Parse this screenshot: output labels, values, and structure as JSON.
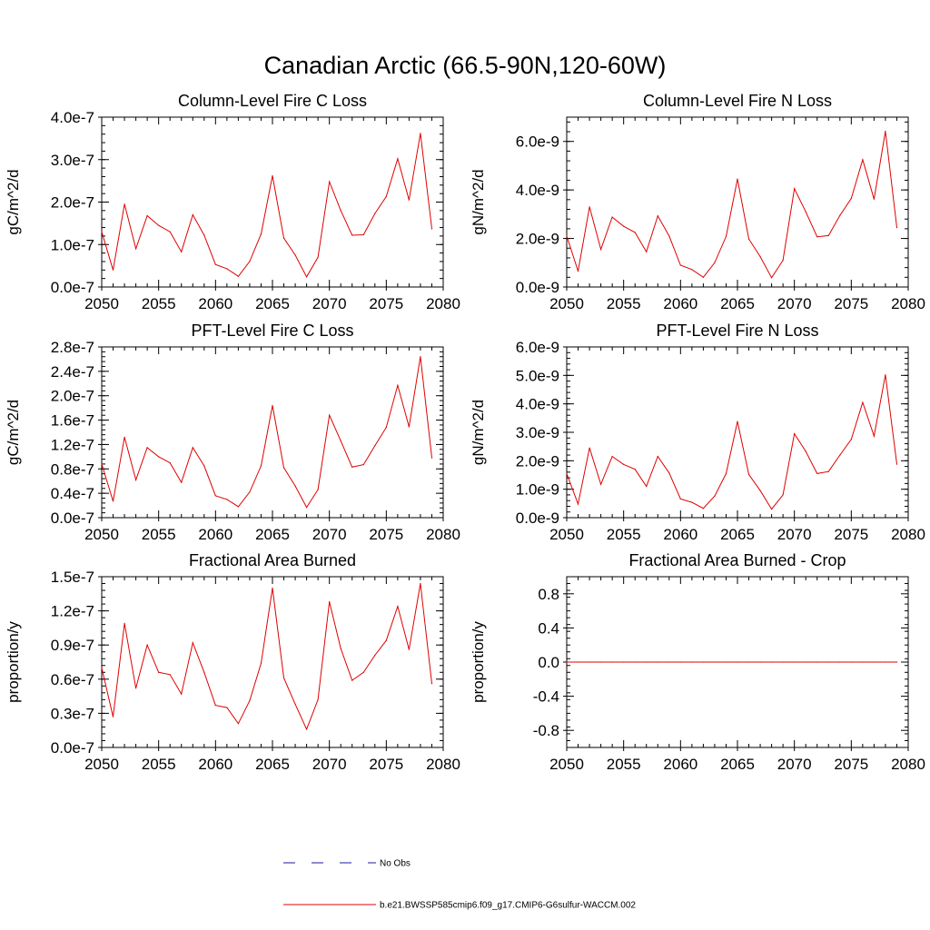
{
  "figure": {
    "title": "Canadian Arctic (66.5-90N,120-60W)"
  },
  "colors": {
    "model_line": "#e00000",
    "obs_line": "#1a1aa0",
    "axis": "#000000"
  },
  "legend": {
    "position": "bottom-center",
    "entries": [
      {
        "label": "No Obs",
        "style": "dashed",
        "color": "#1a1aa0"
      },
      {
        "label": "b.e21.BWSSP585cmip6.f09_g17.CMIP6-G6sulfur-WACCM.002",
        "style": "solid",
        "color": "#e00000"
      }
    ]
  },
  "chart_data": [
    {
      "type": "line",
      "title": "Column-Level Fire C Loss",
      "xlabel": "",
      "ylabel": "gC/m^2/d",
      "xlim": [
        2050,
        2080
      ],
      "ylim": [
        0,
        4e-07
      ],
      "xticks": [
        "2050",
        "2055",
        "2060",
        "2065",
        "2070",
        "2075",
        "2080"
      ],
      "yticks": [
        0,
        1e-07,
        2e-07,
        3e-07,
        4e-07
      ],
      "ytick_labels": [
        "0.0e-7",
        "1.0e-7",
        "2.0e-7",
        "3.0e-7",
        "4.0e-7"
      ],
      "grid": false,
      "series": [
        {
          "name": "b.e21.BWSSP585cmip6.f09_g17.CMIP6-G6sulfur-WACCM.002",
          "x": [
            2050,
            2051,
            2052,
            2053,
            2054,
            2055,
            2056,
            2057,
            2058,
            2059,
            2060,
            2061,
            2062,
            2063,
            2064,
            2065,
            2066,
            2067,
            2068,
            2069,
            2070,
            2071,
            2072,
            2073,
            2074,
            2075,
            2076,
            2077,
            2078,
            2079
          ],
          "values": [
            1.3e-07,
            4e-08,
            1.95e-07,
            9e-08,
            1.68e-07,
            1.45e-07,
            1.3e-07,
            8.3e-08,
            1.7e-07,
            1.22e-07,
            5.3e-08,
            4.3e-08,
            2.5e-08,
            6e-08,
            1.25e-07,
            2.62e-07,
            1.15e-07,
            7.5e-08,
            2.4e-08,
            7e-08,
            2.48e-07,
            1.8e-07,
            1.22e-07,
            1.23e-07,
            1.73e-07,
            2.13e-07,
            3.02e-07,
            2.05e-07,
            3.62e-07,
            1.37e-07
          ]
        }
      ]
    },
    {
      "type": "line",
      "title": "Column-Level Fire N Loss",
      "xlabel": "",
      "ylabel": "gN/m^2/d",
      "xlim": [
        2050,
        2080
      ],
      "ylim": [
        0,
        7e-09
      ],
      "xticks": [
        "2050",
        "2055",
        "2060",
        "2065",
        "2070",
        "2075",
        "2080"
      ],
      "yticks": [
        0,
        2e-09,
        4e-09,
        6e-09
      ],
      "ytick_labels": [
        "0.0e-9",
        "2.0e-9",
        "4.0e-9",
        "6.0e-9"
      ],
      "grid": false,
      "series": [
        {
          "name": "b.e21.BWSSP585cmip6.f09_g17.CMIP6-G6sulfur-WACCM.002",
          "x": [
            2050,
            2051,
            2052,
            2053,
            2054,
            2055,
            2056,
            2057,
            2058,
            2059,
            2060,
            2061,
            2062,
            2063,
            2064,
            2065,
            2066,
            2067,
            2068,
            2069,
            2070,
            2071,
            2072,
            2073,
            2074,
            2075,
            2076,
            2077,
            2078,
            2079
          ],
          "values": [
            2.1e-09,
            6.5e-10,
            3.3e-09,
            1.55e-09,
            2.88e-09,
            2.5e-09,
            2.25e-09,
            1.45e-09,
            2.93e-09,
            2.1e-09,
            9e-10,
            7.2e-10,
            4e-10,
            1e-09,
            2.08e-09,
            4.45e-09,
            1.98e-09,
            1.25e-09,
            3.8e-10,
            1.1e-09,
            4.05e-09,
            3.1e-09,
            2.07e-09,
            2.12e-09,
            2.95e-09,
            3.65e-09,
            5.25e-09,
            3.62e-09,
            6.42e-09,
            2.45e-09
          ]
        }
      ]
    },
    {
      "type": "line",
      "title": "PFT-Level Fire C Loss",
      "xlabel": "",
      "ylabel": "gC/m^2/d",
      "xlim": [
        2050,
        2080
      ],
      "ylim": [
        0,
        2.8e-07
      ],
      "xticks": [
        "2050",
        "2055",
        "2060",
        "2065",
        "2070",
        "2075",
        "2080"
      ],
      "yticks": [
        0,
        4e-08,
        8e-08,
        1.2e-07,
        1.6e-07,
        2e-07,
        2.4e-07,
        2.8e-07
      ],
      "ytick_labels": [
        "0.0e-7",
        "0.4e-7",
        "0.8e-7",
        "1.2e-7",
        "1.6e-7",
        "2.0e-7",
        "2.4e-7",
        "2.8e-7"
      ],
      "grid": false,
      "series": [
        {
          "name": "b.e21.BWSSP585cmip6.f09_g17.CMIP6-G6sulfur-WACCM.002",
          "x": [
            2050,
            2051,
            2052,
            2053,
            2054,
            2055,
            2056,
            2057,
            2058,
            2059,
            2060,
            2061,
            2062,
            2063,
            2064,
            2065,
            2066,
            2067,
            2068,
            2069,
            2070,
            2071,
            2072,
            2073,
            2074,
            2075,
            2076,
            2077,
            2078,
            2079
          ],
          "values": [
            8.8e-08,
            2.7e-08,
            1.32e-07,
            6.2e-08,
            1.15e-07,
            1e-07,
            9e-08,
            5.8e-08,
            1.15e-07,
            8.5e-08,
            3.6e-08,
            3e-08,
            1.8e-08,
            4.2e-08,
            8.5e-08,
            1.84e-07,
            8.2e-08,
            5.2e-08,
            1.7e-08,
            4.6e-08,
            1.68e-07,
            1.26e-07,
            8.3e-08,
            8.7e-08,
            1.18e-07,
            1.48e-07,
            2.17e-07,
            1.49e-07,
            2.64e-07,
            9.8e-08
          ]
        }
      ]
    },
    {
      "type": "line",
      "title": "PFT-Level Fire N Loss",
      "xlabel": "",
      "ylabel": "gN/m^2/d",
      "xlim": [
        2050,
        2080
      ],
      "ylim": [
        0,
        6e-09
      ],
      "xticks": [
        "2050",
        "2055",
        "2060",
        "2065",
        "2070",
        "2075",
        "2080"
      ],
      "yticks": [
        0,
        1e-09,
        2e-09,
        3e-09,
        4e-09,
        5e-09,
        6e-09
      ],
      "ytick_labels": [
        "0.0e-9",
        "1.0e-9",
        "2.0e-9",
        "3.0e-9",
        "4.0e-9",
        "5.0e-9",
        "6.0e-9"
      ],
      "grid": false,
      "series": [
        {
          "name": "b.e21.BWSSP585cmip6.f09_g17.CMIP6-G6sulfur-WACCM.002",
          "x": [
            2050,
            2051,
            2052,
            2053,
            2054,
            2055,
            2056,
            2057,
            2058,
            2059,
            2060,
            2061,
            2062,
            2063,
            2064,
            2065,
            2066,
            2067,
            2068,
            2069,
            2070,
            2071,
            2072,
            2073,
            2074,
            2075,
            2076,
            2077,
            2078,
            2079
          ],
          "values": [
            1.55e-09,
            4.8e-10,
            2.45e-09,
            1.17e-09,
            2.15e-09,
            1.87e-09,
            1.7e-09,
            1.1e-09,
            2.15e-09,
            1.57e-09,
            6.6e-10,
            5.4e-10,
            3.3e-10,
            7.6e-10,
            1.55e-09,
            3.38e-09,
            1.52e-09,
            9.5e-10,
            3e-10,
            8e-10,
            2.95e-09,
            2.33e-09,
            1.55e-09,
            1.62e-09,
            2.2e-09,
            2.75e-09,
            4.05e-09,
            2.87e-09,
            5.02e-09,
            1.88e-09
          ]
        }
      ]
    },
    {
      "type": "line",
      "title": "Fractional Area Burned",
      "xlabel": "",
      "ylabel": "proportion/y",
      "xlim": [
        2050,
        2080
      ],
      "ylim": [
        0,
        1.5e-07
      ],
      "xticks": [
        "2050",
        "2055",
        "2060",
        "2065",
        "2070",
        "2075",
        "2080"
      ],
      "yticks": [
        0,
        3e-08,
        6e-08,
        9e-08,
        1.2e-07,
        1.5e-07
      ],
      "ytick_labels": [
        "0.0e-7",
        "0.3e-7",
        "0.6e-7",
        "0.9e-7",
        "1.2e-7",
        "1.5e-7"
      ],
      "grid": false,
      "series": [
        {
          "name": "b.e21.BWSSP585cmip6.f09_g17.CMIP6-G6sulfur-WACCM.002",
          "x": [
            2050,
            2051,
            2052,
            2053,
            2054,
            2055,
            2056,
            2057,
            2058,
            2059,
            2060,
            2061,
            2062,
            2063,
            2064,
            2065,
            2066,
            2067,
            2068,
            2069,
            2070,
            2071,
            2072,
            2073,
            2074,
            2075,
            2076,
            2077,
            2078,
            2079
          ],
          "values": [
            7e-08,
            2.7e-08,
            1.09e-07,
            5.2e-08,
            9e-08,
            6.6e-08,
            6.4e-08,
            4.7e-08,
            9.2e-08,
            6.6e-08,
            3.7e-08,
            3.5e-08,
            2.1e-08,
            4.1e-08,
            7.4e-08,
            1.4e-07,
            6.1e-08,
            3.8e-08,
            1.6e-08,
            4.2e-08,
            1.28e-07,
            8.7e-08,
            5.9e-08,
            6.6e-08,
            8.1e-08,
            9.4e-08,
            1.24e-07,
            8.6e-08,
            1.44e-07,
            5.6e-08
          ]
        }
      ]
    },
    {
      "type": "line",
      "title": "Fractional Area Burned - Crop",
      "xlabel": "",
      "ylabel": "proportion/y",
      "xlim": [
        2050,
        2080
      ],
      "ylim": [
        -1.0,
        1.0
      ],
      "xticks": [
        "2050",
        "2055",
        "2060",
        "2065",
        "2070",
        "2075",
        "2080"
      ],
      "yticks": [
        -0.8,
        -0.4,
        0.0,
        0.4,
        0.8
      ],
      "ytick_labels": [
        "-0.8",
        "-0.4",
        "0.0",
        "0.4",
        "0.8"
      ],
      "grid": false,
      "series": [
        {
          "name": "b.e21.BWSSP585cmip6.f09_g17.CMIP6-G6sulfur-WACCM.002",
          "x": [
            2050,
            2051,
            2052,
            2053,
            2054,
            2055,
            2056,
            2057,
            2058,
            2059,
            2060,
            2061,
            2062,
            2063,
            2064,
            2065,
            2066,
            2067,
            2068,
            2069,
            2070,
            2071,
            2072,
            2073,
            2074,
            2075,
            2076,
            2077,
            2078,
            2079
          ],
          "values": [
            0,
            0,
            0,
            0,
            0,
            0,
            0,
            0,
            0,
            0,
            0,
            0,
            0,
            0,
            0,
            0,
            0,
            0,
            0,
            0,
            0,
            0,
            0,
            0,
            0,
            0,
            0,
            0,
            0,
            0
          ]
        }
      ]
    }
  ]
}
